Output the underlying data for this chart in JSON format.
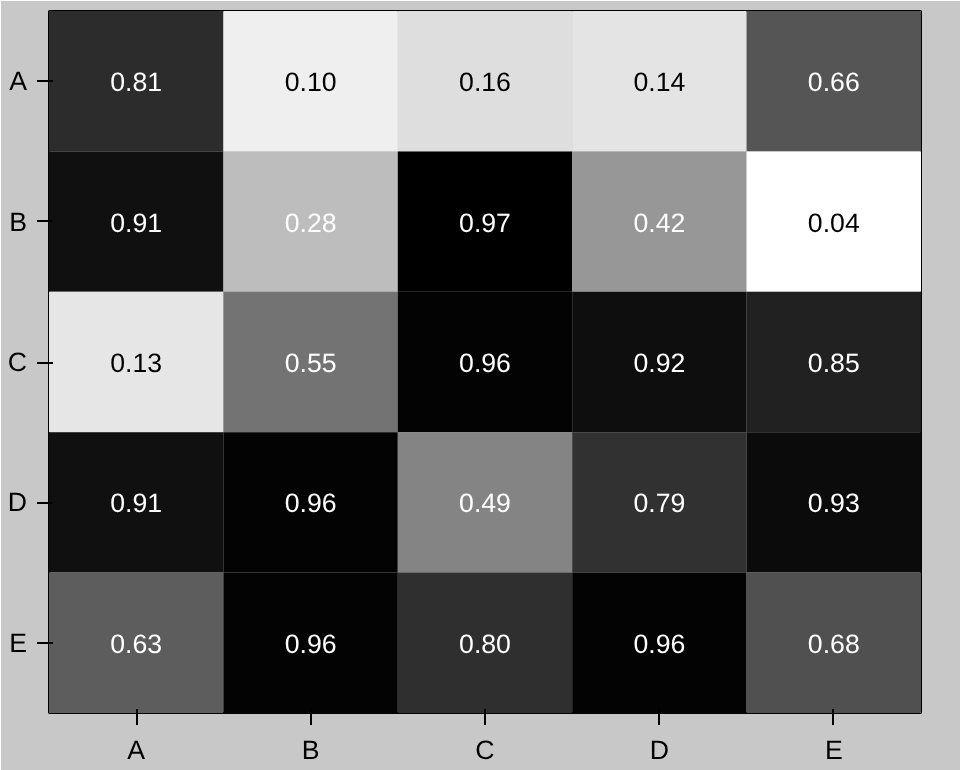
{
  "chart_data": {
    "type": "heatmap",
    "categories": [
      "A",
      "B",
      "C",
      "D",
      "E"
    ],
    "y_categories": [
      "A",
      "B",
      "C",
      "D",
      "E"
    ],
    "cells": [
      [
        0.81,
        0.1,
        0.16,
        0.14,
        0.66
      ],
      [
        0.91,
        0.28,
        0.97,
        0.42,
        0.04
      ],
      [
        0.13,
        0.55,
        0.96,
        0.92,
        0.85
      ],
      [
        0.91,
        0.96,
        0.49,
        0.79,
        0.93
      ],
      [
        0.63,
        0.96,
        0.8,
        0.96,
        0.68
      ]
    ],
    "cell_labels": [
      [
        "0.81",
        "0.10",
        "0.16",
        "0.14",
        "0.66"
      ],
      [
        "0.91",
        "0.28",
        "0.97",
        "0.42",
        "0.04"
      ],
      [
        "0.13",
        "0.55",
        "0.96",
        "0.92",
        "0.85"
      ],
      [
        "0.91",
        "0.96",
        "0.49",
        "0.79",
        "0.93"
      ],
      [
        "0.63",
        "0.96",
        "0.80",
        "0.96",
        "0.68"
      ]
    ],
    "data_labels": true
  }
}
